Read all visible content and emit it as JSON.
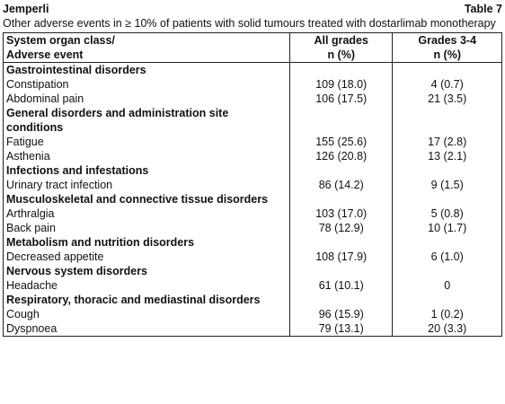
{
  "header": {
    "title": "Jemperli",
    "table_label": "Table 7",
    "caption": "Other adverse events in ≥ 10% of patients with solid tumours treated with dostarlimab monotherapy"
  },
  "table": {
    "columns": [
      [
        "System organ class/",
        "Adverse event"
      ],
      [
        "All grades",
        "n (%)"
      ],
      [
        "Grades 3-4",
        "n (%)"
      ]
    ],
    "rows": [
      {
        "section": "Gastrointestinal disorders"
      },
      {
        "cells": [
          "Constipation",
          "109 (18.0)",
          "4 (0.7)"
        ]
      },
      {
        "cells": [
          "Abdominal pain",
          "106 (17.5)",
          "21 (3.5)"
        ]
      },
      {
        "section": "General disorders and administration site conditions"
      },
      {
        "cells": [
          "Fatigue",
          "155 (25.6)",
          "17 (2.8)"
        ]
      },
      {
        "cells": [
          "Asthenia",
          "126 (20.8)",
          "13 (2.1)"
        ]
      },
      {
        "section": "Infections and infestations"
      },
      {
        "cells": [
          "Urinary tract infection",
          "86 (14.2)",
          "9 (1.5)"
        ]
      },
      {
        "section": "Musculoskeletal and connective tissue disorders"
      },
      {
        "cells": [
          "Arthralgia",
          "103 (17.0)",
          "5 (0.8)"
        ]
      },
      {
        "cells": [
          "Back pain",
          "78 (12.9)",
          "10 (1.7)"
        ]
      },
      {
        "section": "Metabolism and nutrition disorders"
      },
      {
        "cells": [
          "Decreased appetite",
          "108 (17.9)",
          "6 (1.0)"
        ]
      },
      {
        "section": "Nervous system disorders"
      },
      {
        "cells": [
          "Headache",
          "61 (10.1)",
          "0"
        ]
      },
      {
        "section": "Respiratory, thoracic and mediastinal disorders"
      },
      {
        "cells": [
          "Cough",
          "96 (15.9)",
          "1 (0.2)"
        ]
      },
      {
        "cells": [
          "Dyspnoea",
          "79 (13.1)",
          "20 (3.3)"
        ]
      }
    ]
  }
}
